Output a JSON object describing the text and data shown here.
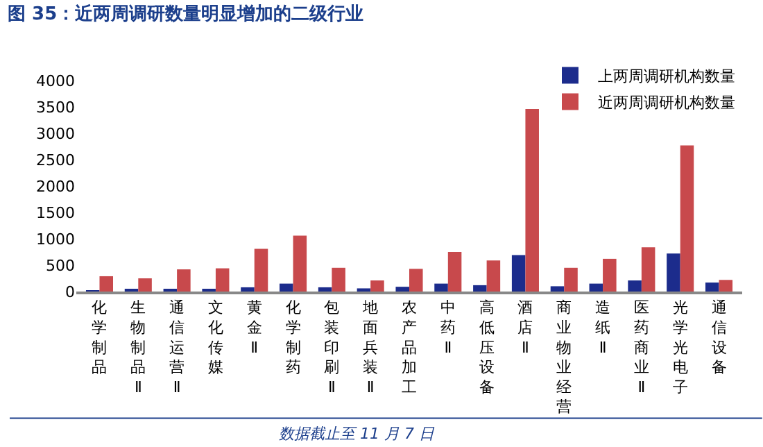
{
  "chart_data": {
    "type": "bar",
    "title": "图 35：近两周调研数量明显增加的二级行业",
    "categories": [
      "化学制品",
      "生物制品Ⅱ",
      "通信运营Ⅱ",
      "文化传媒",
      "黄金Ⅱ",
      "化学制药",
      "包装印刷Ⅱ",
      "地面兵装Ⅱ",
      "农产品加工",
      "中药Ⅱ",
      "高低压设备",
      "酒店Ⅱ",
      "商业物业经营",
      "造纸Ⅱ",
      "医药商业Ⅱ",
      "光学光电子",
      "通信设备"
    ],
    "series": [
      {
        "name": "上两周调研机构数量",
        "color": "#1c2c8c",
        "values": [
          10,
          30,
          50,
          50,
          80,
          150,
          80,
          60,
          90,
          150,
          120,
          690,
          100,
          150,
          210,
          720,
          170
        ]
      },
      {
        "name": "近两周调研机构数量",
        "color": "#c8494c",
        "values": [
          290,
          250,
          420,
          440,
          810,
          1060,
          450,
          210,
          430,
          750,
          590,
          3460,
          450,
          620,
          840,
          2770,
          220
        ]
      }
    ],
    "ylim": [
      0,
      4000
    ],
    "yticks": [
      0,
      500,
      1000,
      1500,
      2000,
      2500,
      3000,
      3500,
      4000
    ],
    "legend": "top right",
    "annotations": [
      "数据截止至 11 月 7 日"
    ]
  }
}
